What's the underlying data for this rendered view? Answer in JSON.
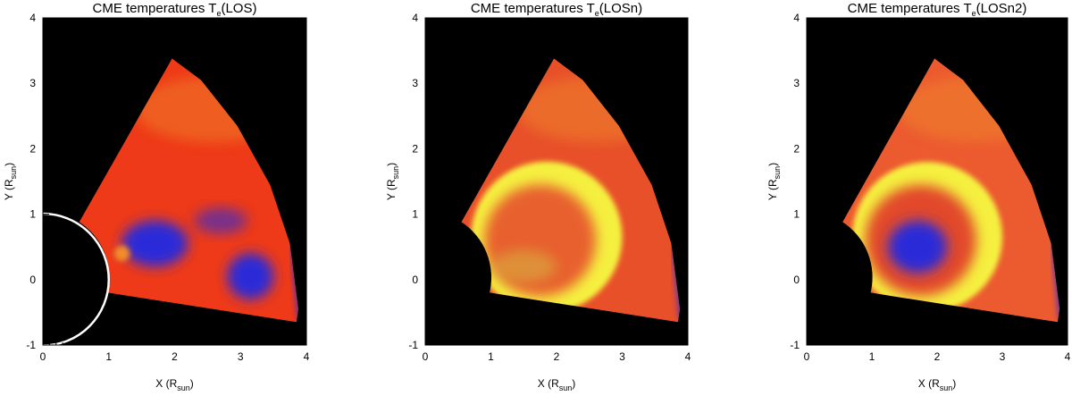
{
  "chart_data": [
    {
      "type": "heatmap",
      "title": {
        "main": "CME temperatures T",
        "sub": "e",
        "tail": "(LOS)"
      },
      "xlabel": {
        "main": "X (R",
        "sub": "sun",
        "tail": ")"
      },
      "ylabel": {
        "main": "Y (R",
        "sub": "sun",
        "tail": ")"
      },
      "xlim": [
        0,
        4
      ],
      "ylim": [
        -1,
        4
      ],
      "xticks": [
        "0",
        "1",
        "2",
        "3",
        "4"
      ],
      "yticks": [
        "-1",
        "0",
        "1",
        "2",
        "3",
        "4"
      ],
      "background_color": "#000000",
      "occulter": {
        "shape": "circle",
        "center": [
          0,
          0
        ],
        "radius": 1,
        "color": "#ffffff",
        "filled_black": true
      },
      "colors": {
        "base": "#ee3a18",
        "cool": "#2a2ad8",
        "hot": "#f5f040",
        "warm": "#f08c2a"
      }
    },
    {
      "type": "heatmap",
      "title": {
        "main": "CME temperatures T",
        "sub": "e",
        "tail": "(LOSn)"
      },
      "xlabel": {
        "main": "X (R",
        "sub": "sun",
        "tail": ")"
      },
      "ylabel": {
        "main": "Y (R",
        "sub": "sun",
        "tail": ")"
      },
      "xlim": [
        0,
        4
      ],
      "ylim": [
        -1,
        4
      ],
      "xticks": [
        "0",
        "1",
        "2",
        "3",
        "4"
      ],
      "yticks": [
        "-1",
        "0",
        "1",
        "2",
        "3",
        "4"
      ],
      "background_color": "#000000",
      "colors": {
        "base": "#e8502a",
        "cool": "#2a2ad8",
        "hot": "#f5f040",
        "warm": "#f08c2a"
      }
    },
    {
      "type": "heatmap",
      "title": {
        "main": "CME temperatures T",
        "sub": "e",
        "tail": "(LOSn2)"
      },
      "xlabel": {
        "main": "X (R",
        "sub": "sun",
        "tail": ")"
      },
      "ylabel": {
        "main": "Y (R",
        "sub": "sun",
        "tail": ")"
      },
      "xlim": [
        0,
        4
      ],
      "ylim": [
        -1,
        4
      ],
      "xticks": [
        "0",
        "1",
        "2",
        "3",
        "4"
      ],
      "yticks": [
        "-1",
        "0",
        "1",
        "2",
        "3",
        "4"
      ],
      "background_color": "#000000",
      "colors": {
        "base": "#ec5a30",
        "cool": "#2a2ad8",
        "hot": "#f5f040",
        "warm": "#f08c2a"
      }
    }
  ]
}
